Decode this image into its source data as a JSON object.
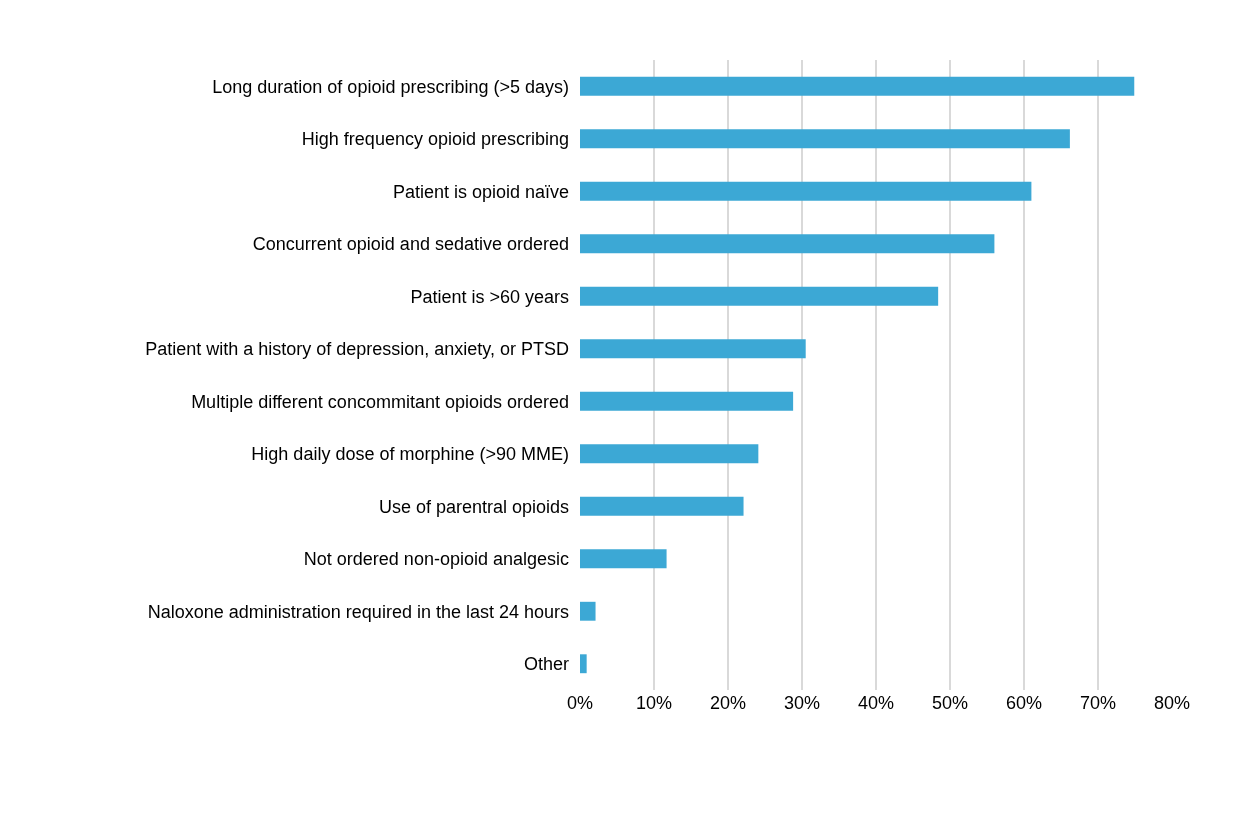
{
  "chart_data": {
    "type": "bar",
    "orientation": "horizontal",
    "categories": [
      "Long duration of opioid prescribing (>5 days)",
      "High frequency opioid prescribing",
      "Patient is opioid naïve",
      "Concurrent opioid and sedative ordered",
      "Patient is >60 years",
      "Patient with a history of depression, anxiety, or PTSD",
      "Multiple different concommitant opioids ordered",
      "High daily dose of morphine (>90 MME)",
      "Use of parentral opioids",
      "Not ordered non-opioid analgesic",
      "Naloxone administration required in the last 24 hours",
      "Other"
    ],
    "values": [
      74.9,
      66.2,
      61.0,
      56.0,
      48.4,
      30.5,
      28.8,
      24.1,
      22.1,
      11.7,
      2.1,
      0.9
    ],
    "color": "#3ca8d5",
    "xlim": [
      0,
      80
    ],
    "xticks": [
      {
        "value": 0,
        "label": "0%"
      },
      {
        "value": 10,
        "label": "10%"
      },
      {
        "value": 20,
        "label": "20%"
      },
      {
        "value": 30,
        "label": "30%"
      },
      {
        "value": 40,
        "label": "40%"
      },
      {
        "value": 50,
        "label": "50%"
      },
      {
        "value": 60,
        "label": "60%"
      },
      {
        "value": 70,
        "label": "70%"
      },
      {
        "value": 80,
        "label": "80%"
      }
    ],
    "grid": "x",
    "legend": false
  }
}
